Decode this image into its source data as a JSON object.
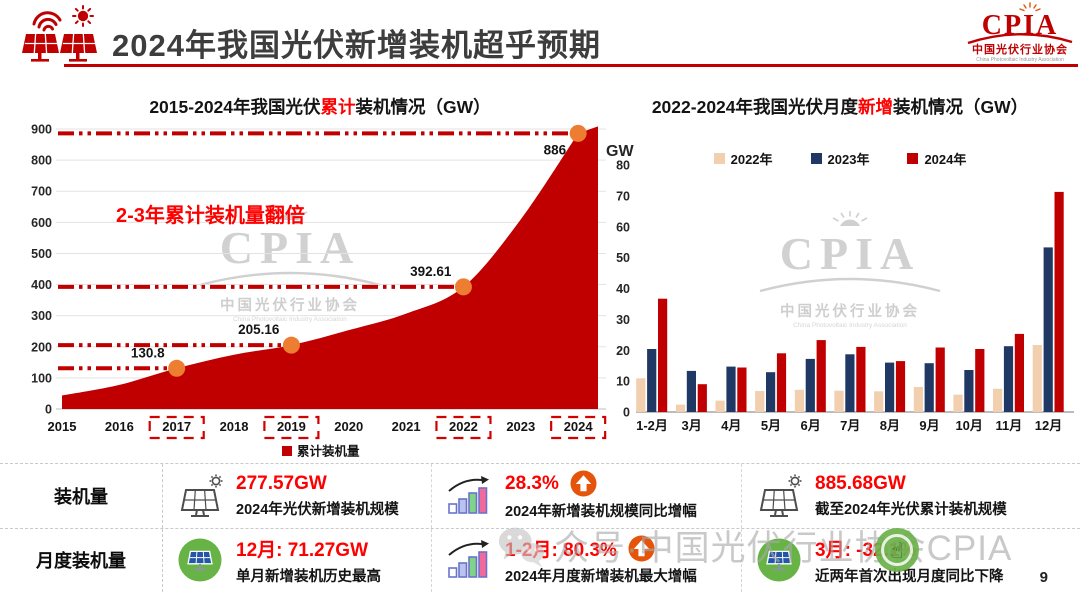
{
  "header": {
    "title": "2024年我国光伏新增装机超乎预期",
    "cpia": {
      "acronym": "CPIA",
      "cn": "中国光伏行业协会",
      "en": "China Photovoltaic Industry Association"
    }
  },
  "left_chart_title": {
    "prefix": "2015-2024年我国光伏",
    "highlight": "累计",
    "suffix": "装机情况（GW）"
  },
  "right_chart_title": {
    "prefix": "2022-2024年我国光伏月度",
    "highlight": "新增",
    "suffix": "装机情况（GW）"
  },
  "chart_data": [
    {
      "type": "area",
      "title": "2015-2024年我国光伏累计装机情况（GW）",
      "x": [
        "2015",
        "2016",
        "2017",
        "2018",
        "2019",
        "2020",
        "2021",
        "2022",
        "2023",
        "2024"
      ],
      "values": [
        43.2,
        77.4,
        130.8,
        174.5,
        205.16,
        253.4,
        306.6,
        392.61,
        609.5,
        886
      ],
      "labeled_points": [
        {
          "year": "2017",
          "label": "130.8"
        },
        {
          "year": "2019",
          "label": "205.16"
        },
        {
          "year": "2022",
          "label": "392.61"
        },
        {
          "year": "2024",
          "label": "886"
        }
      ],
      "boxed_years": [
        "2017",
        "2019",
        "2022",
        "2024"
      ],
      "annotation": "2-3年累计装机量翻倍",
      "legend": "累计装机量",
      "ylim": [
        0,
        900
      ],
      "ytick_step": 100,
      "grid": true,
      "fill_color": "#c00000",
      "marker_color": "#ed7d31",
      "refline_color": "#c00000"
    },
    {
      "type": "bar",
      "title": "2022-2024年我国光伏月度新增装机情况（GW）",
      "unit": "GW",
      "categories": [
        "1-2月",
        "3月",
        "4月",
        "5月",
        "6月",
        "7月",
        "8月",
        "9月",
        "10月",
        "11月",
        "12月"
      ],
      "series": [
        {
          "name": "2022年",
          "color": "#f2cfae",
          "values": [
            10.9,
            2.4,
            3.7,
            6.8,
            7.2,
            6.9,
            6.7,
            8.1,
            5.6,
            7.5,
            21.7
          ]
        },
        {
          "name": "2023年",
          "color": "#1f3864",
          "values": [
            20.4,
            13.3,
            14.7,
            12.9,
            17.2,
            18.7,
            16.0,
            15.8,
            13.6,
            21.3,
            53.3
          ]
        },
        {
          "name": "2024年",
          "color": "#c00000",
          "values": [
            36.7,
            9.0,
            14.4,
            19.0,
            23.3,
            21.1,
            16.5,
            20.9,
            20.4,
            25.3,
            71.3
          ]
        }
      ],
      "ylim": [
        0,
        80
      ],
      "ytick_step": 10,
      "grid": false,
      "legend_position": "top"
    }
  ],
  "stats": {
    "rows": [
      {
        "label": "装机量",
        "items": [
          {
            "icon": "solar-panel",
            "value": "277.57GW",
            "caption": "2024年光伏新增装机规模"
          },
          {
            "icon": "chart-up",
            "value": "28.3%",
            "caption": "2024年新增装机规模同比增幅",
            "arrow": true
          },
          {
            "icon": "solar-panel",
            "value": "885.68GW",
            "caption": "截至2024年光伏累计装机规模"
          }
        ]
      },
      {
        "label": "月度装机量",
        "items": [
          {
            "icon": "solar-panel-green",
            "value": "12月: 71.27GW",
            "caption": "单月新增装机历史最高"
          },
          {
            "icon": "chart-up",
            "value": "1-2月: 80.3%",
            "caption": "2024年月度新增装机最大增幅",
            "arrow": true
          },
          {
            "icon": "solar-panel-green",
            "value": "3月: -32.1%",
            "caption": "近两年首次出现月度同比下降"
          }
        ]
      }
    ]
  },
  "watermark": {
    "cpia": "CPIA",
    "cn": "中国光伏行业协会",
    "en": "China Photovoltaic Industry Association",
    "bottom": "众号·中国光伏行业协会CPIA"
  },
  "page_number": "9"
}
